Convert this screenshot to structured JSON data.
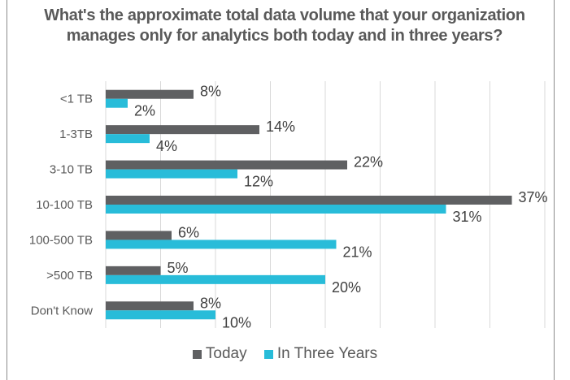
{
  "chart_data": {
    "type": "bar",
    "orientation": "horizontal",
    "title": "What's the approximate total data volume that your organization manages only for analytics both today and in three years?",
    "categories": [
      "<1 TB",
      "1-3TB",
      "3-10 TB",
      "10-100 TB",
      "100-500 TB",
      ">500 TB",
      "Don't Know"
    ],
    "series": [
      {
        "name": "Today",
        "color": "#5f6062",
        "values": [
          8,
          14,
          22,
          37,
          6,
          5,
          8
        ],
        "labels": [
          "8%",
          "14%",
          "22%",
          "37%",
          "6%",
          "5%",
          "8%"
        ]
      },
      {
        "name": "In Three Years",
        "color": "#28bcd9",
        "values": [
          2,
          4,
          12,
          31,
          21,
          20,
          10
        ],
        "labels": [
          "2%",
          "4%",
          "12%",
          "31%",
          "21%",
          "20%",
          "10%"
        ]
      }
    ],
    "xlabel": "",
    "ylabel": "",
    "xlim": [
      0,
      40
    ],
    "grid": true,
    "tick_labels_visible": false,
    "legend": "bottom"
  }
}
